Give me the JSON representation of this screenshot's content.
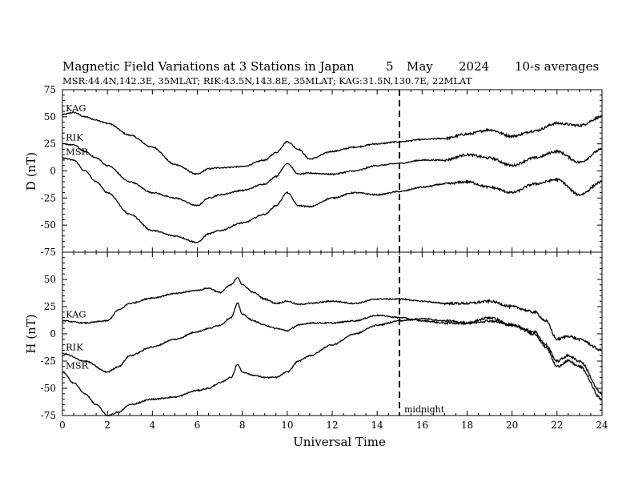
{
  "title": "Magnetic Field Variations at 3 Stations in Japan",
  "date": {
    "day": "5",
    "month": "May",
    "year": "2024"
  },
  "averaging": "10-s averages",
  "subtitle": "MSR:44.4N,142.3E, 35MLAT;  RIK:43.5N,143.8E, 35MLAT;  KAG:31.5N,130.7E, 22MLAT",
  "colors": {
    "line": "#000000",
    "background": "#ffffff"
  },
  "chart_data": [
    {
      "type": "line",
      "panel": "top",
      "ylabel": "D (nT)",
      "xlabel": "",
      "xlim": [
        0,
        24
      ],
      "ylim": [
        -75,
        75
      ],
      "yticks": [
        -75,
        -50,
        -25,
        0,
        25,
        50,
        75
      ],
      "ytick_labels": [
        "-75",
        "-50",
        "-25",
        "0",
        "25",
        "50",
        "75"
      ],
      "grid": false,
      "annotation": {
        "text": "midnight",
        "x": 15
      },
      "series": [
        {
          "name": "KAG",
          "x": [
            0,
            0.5,
            1,
            1.5,
            2,
            3,
            4,
            5,
            6,
            6.5,
            7,
            8,
            9,
            9.5,
            10,
            10.5,
            11,
            12,
            13,
            14,
            15,
            16,
            17,
            18,
            19,
            20,
            21,
            22,
            23,
            24
          ],
          "values": [
            52,
            54,
            50,
            47,
            44,
            33,
            22,
            6,
            -3,
            2,
            3,
            4,
            10,
            17,
            27,
            20,
            11,
            18,
            22,
            25,
            27,
            29,
            30,
            34,
            38,
            32,
            37,
            44,
            42,
            50
          ]
        },
        {
          "name": "RIK",
          "x": [
            0,
            0.5,
            1,
            1.5,
            2,
            3,
            4,
            5,
            6,
            6.5,
            7,
            8,
            9,
            9.5,
            10,
            10.5,
            11,
            12,
            13,
            14,
            15,
            16,
            17,
            18,
            19,
            20,
            21,
            22,
            23,
            24
          ],
          "values": [
            25,
            24,
            18,
            12,
            5,
            -10,
            -20,
            -25,
            -32,
            -25,
            -22,
            -18,
            -12,
            -5,
            7,
            -3,
            -2,
            -3,
            0,
            5,
            7,
            10,
            10,
            15,
            12,
            5,
            12,
            18,
            8,
            20
          ]
        },
        {
          "name": "MSR",
          "x": [
            0,
            0.5,
            1,
            1.5,
            2,
            3,
            4,
            5,
            6,
            6.5,
            7,
            8,
            9,
            9.5,
            10,
            10.5,
            11,
            12,
            13,
            14,
            15,
            16,
            17,
            18,
            19,
            20,
            21,
            22,
            23,
            24
          ],
          "values": [
            12,
            10,
            0,
            -10,
            -20,
            -40,
            -55,
            -60,
            -66,
            -58,
            -55,
            -48,
            -40,
            -32,
            -20,
            -32,
            -33,
            -25,
            -20,
            -22,
            -19,
            -15,
            -12,
            -10,
            -15,
            -20,
            -12,
            -8,
            -22,
            -10
          ]
        }
      ]
    },
    {
      "type": "line",
      "panel": "bottom",
      "ylabel": "H (nT)",
      "xlabel": "Universal Time",
      "xlim": [
        0,
        24
      ],
      "ylim": [
        -75,
        75
      ],
      "xticks": [
        0,
        2,
        4,
        6,
        8,
        10,
        12,
        14,
        16,
        18,
        20,
        22,
        24
      ],
      "xtick_labels": [
        "0",
        "2",
        "4",
        "6",
        "8",
        "10",
        "12",
        "14",
        "16",
        "18",
        "20",
        "22",
        "24"
      ],
      "yticks": [
        -75,
        -50,
        -25,
        0,
        25,
        50
      ],
      "ytick_labels": [
        "-75",
        "-50",
        "-25",
        "0",
        "25",
        "50"
      ],
      "grid": false,
      "series": [
        {
          "name": "KAG",
          "x": [
            0,
            1,
            2,
            2.5,
            3,
            4,
            5,
            6,
            6.5,
            7,
            7.5,
            7.8,
            8,
            8.5,
            9,
            9.5,
            10,
            10.5,
            11,
            12,
            13,
            14,
            15,
            16,
            17,
            18,
            19,
            20,
            21,
            21.5,
            22,
            22.5,
            23,
            24
          ],
          "values": [
            12,
            10,
            12,
            22,
            28,
            33,
            37,
            40,
            42,
            38,
            45,
            52,
            45,
            38,
            32,
            28,
            30,
            27,
            28,
            30,
            28,
            32,
            32,
            30,
            28,
            28,
            30,
            25,
            20,
            12,
            -5,
            -2,
            -5,
            -15
          ]
        },
        {
          "name": "RIK",
          "x": [
            0,
            1,
            2,
            2.5,
            3,
            4,
            5,
            6,
            6.5,
            7,
            7.5,
            7.8,
            8,
            8.5,
            9,
            9.5,
            10,
            10.5,
            11,
            12,
            13,
            14,
            15,
            16,
            17,
            18,
            19,
            20,
            21,
            21.5,
            22,
            22.5,
            23,
            24
          ],
          "values": [
            -18,
            -25,
            -35,
            -30,
            -20,
            -12,
            -5,
            2,
            5,
            8,
            15,
            28,
            18,
            12,
            8,
            5,
            3,
            8,
            10,
            10,
            12,
            17,
            15,
            12,
            10,
            10,
            12,
            8,
            2,
            -10,
            -25,
            -20,
            -25,
            -55
          ]
        },
        {
          "name": "MSR",
          "x": [
            0,
            0.5,
            1,
            1.5,
            2,
            2.5,
            3,
            4,
            5,
            6,
            6.5,
            7,
            7.5,
            7.8,
            8,
            8.5,
            9,
            9.5,
            10,
            10.5,
            11,
            12,
            13,
            14,
            15,
            16,
            17,
            18,
            19,
            20,
            21,
            21.5,
            22,
            22.5,
            23,
            24
          ],
          "values": [
            -35,
            -45,
            -55,
            -65,
            -75,
            -72,
            -65,
            -60,
            -58,
            -52,
            -50,
            -45,
            -40,
            -28,
            -35,
            -38,
            -40,
            -40,
            -35,
            -25,
            -20,
            -10,
            0,
            8,
            12,
            14,
            12,
            10,
            15,
            8,
            0,
            -12,
            -30,
            -25,
            -30,
            -60
          ]
        }
      ]
    }
  ]
}
